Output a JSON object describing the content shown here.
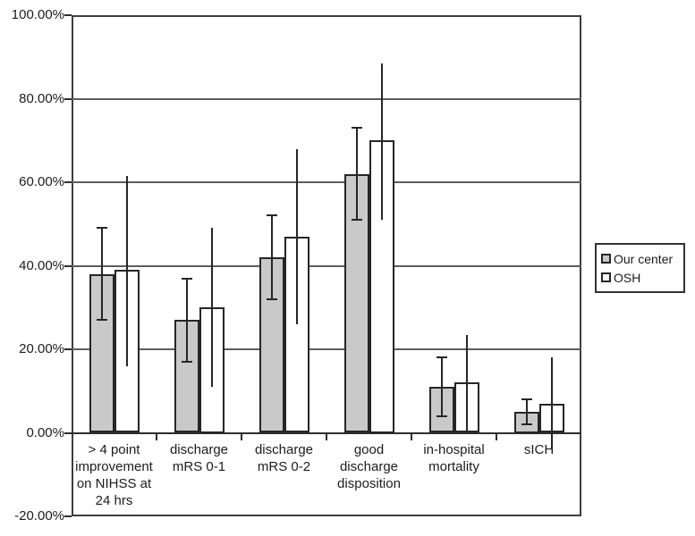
{
  "chart_data": {
    "type": "bar",
    "title": "",
    "xlabel": "",
    "ylabel": "",
    "categories": [
      "> 4 point improvement on NIHSS at 24 hrs",
      "discharge mRS 0-1",
      "discharge mRS 0-2",
      "good discharge disposition",
      "in-hospital mortality",
      "sICH"
    ],
    "category_lines": [
      [
        "> 4 point",
        "improvement",
        "on NIHSS at",
        "24 hrs"
      ],
      [
        "discharge",
        "mRS 0-1"
      ],
      [
        "discharge",
        "mRS 0-2"
      ],
      [
        "good",
        "discharge",
        "disposition"
      ],
      [
        "in-hospital",
        "mortality"
      ],
      [
        "sICH"
      ]
    ],
    "series": [
      {
        "name": "Our center",
        "fill": "#c9c9c9",
        "values": [
          38,
          27,
          42,
          62,
          11,
          5
        ],
        "error_low": [
          27,
          17,
          32,
          51,
          4,
          2
        ],
        "error_high": [
          49,
          37,
          52,
          73,
          18,
          8
        ],
        "error_caps": true
      },
      {
        "name": "OSH",
        "fill": "#ffffff",
        "values": [
          39,
          30,
          47,
          70,
          12,
          7
        ],
        "error_low": [
          16,
          11,
          26,
          51,
          0,
          -4
        ],
        "error_high": [
          61.5,
          49,
          68,
          88.5,
          23.5,
          18
        ],
        "error_caps": false
      }
    ],
    "ylim": [
      -20,
      100
    ],
    "y_ticks": [
      {
        "value": 100,
        "label": "100.00%"
      },
      {
        "value": 80,
        "label": "80.00%"
      },
      {
        "value": 60,
        "label": "60.00%"
      },
      {
        "value": 40,
        "label": "40.00%"
      },
      {
        "value": 20,
        "label": "20.00%"
      },
      {
        "value": 0,
        "label": "0.00%"
      },
      {
        "value": -20,
        "label": "-20.00%"
      }
    ],
    "grid": true,
    "legend_position": "right-outside",
    "colors": {
      "our_center_fill": "#c9c9c9",
      "osh_fill": "#ffffff",
      "bar_border": "#262626",
      "gridline": "#5c5c5c",
      "axis": "#2e2e2e",
      "text": "#1c1c1c"
    }
  }
}
